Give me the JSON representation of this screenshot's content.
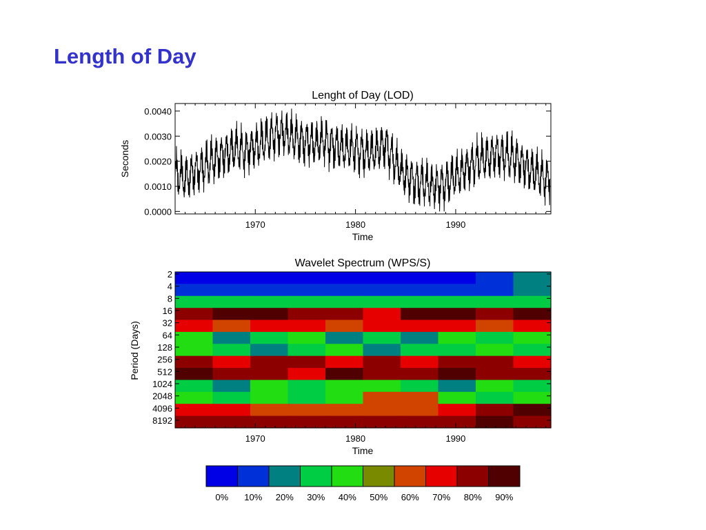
{
  "slide": {
    "title": "Length of Day"
  },
  "chart_data": [
    {
      "type": "line",
      "title": "Lenght of Day (LOD)",
      "xlabel": "Time",
      "ylabel": "Seconds",
      "xlim": [
        1962,
        1999.5
      ],
      "ylim": [
        -0.0001,
        0.0043
      ],
      "xticks": [
        1970,
        1980,
        1990
      ],
      "yticks": [
        "0.0000",
        "0.0010",
        "0.0020",
        "0.0030",
        "0.0040"
      ],
      "grid": false,
      "series": [
        {
          "x": [
            1962,
            1963,
            1964,
            1965,
            1966,
            1967,
            1968,
            1969,
            1970,
            1971,
            1972,
            1973,
            1974,
            1975,
            1976,
            1977,
            1978,
            1979,
            1980,
            1981,
            1982,
            1983,
            1984,
            1985,
            1986,
            1987,
            1988,
            1989,
            1990,
            1991,
            1992,
            1993,
            1994,
            1995,
            1996,
            1997,
            1998,
            1999
          ],
          "values": [
            0.0015,
            0.0013,
            0.0016,
            0.0018,
            0.0021,
            0.0023,
            0.0025,
            0.0024,
            0.0026,
            0.0028,
            0.0031,
            0.0031,
            0.0029,
            0.0028,
            0.0027,
            0.0028,
            0.0026,
            0.0025,
            0.0025,
            0.0023,
            0.0024,
            0.0027,
            0.0019,
            0.0014,
            0.0012,
            0.0011,
            0.001,
            0.0011,
            0.0014,
            0.0017,
            0.002,
            0.0021,
            0.0023,
            0.0022,
            0.0021,
            0.0018,
            0.0015,
            0.0013
          ]
        }
      ]
    },
    {
      "type": "heatmap",
      "title": "Wavelet Spectrum (WPS/S)",
      "xlabel": "Time",
      "ylabel": "Period (Days)",
      "xlim": [
        1962,
        1999.5
      ],
      "xticks": [
        1970,
        1980,
        1990
      ],
      "y_scale": "log2",
      "periods": [
        "2",
        "4",
        "8",
        "16",
        "32",
        "64",
        "128",
        "256",
        "512",
        "1024",
        "2048",
        "4096",
        "8192"
      ],
      "years": [
        1962,
        1966,
        1970,
        1974,
        1978,
        1982,
        1986,
        1990,
        1994,
        1998
      ],
      "values": [
        [
          0,
          0,
          0,
          0,
          0,
          0,
          0,
          0,
          10,
          20
        ],
        [
          10,
          10,
          10,
          10,
          10,
          10,
          10,
          10,
          10,
          20
        ],
        [
          30,
          30,
          30,
          30,
          30,
          30,
          30,
          30,
          30,
          30
        ],
        [
          80,
          90,
          90,
          80,
          80,
          70,
          90,
          90,
          80,
          90
        ],
        [
          70,
          60,
          70,
          70,
          60,
          70,
          70,
          70,
          60,
          70
        ],
        [
          40,
          20,
          30,
          40,
          20,
          30,
          20,
          40,
          30,
          40
        ],
        [
          40,
          30,
          20,
          30,
          40,
          20,
          30,
          30,
          40,
          30
        ],
        [
          80,
          70,
          80,
          80,
          70,
          80,
          70,
          80,
          80,
          70
        ],
        [
          90,
          80,
          80,
          70,
          90,
          80,
          80,
          90,
          80,
          80
        ],
        [
          30,
          20,
          40,
          30,
          40,
          40,
          30,
          20,
          40,
          30
        ],
        [
          40,
          30,
          40,
          30,
          40,
          60,
          60,
          40,
          30,
          40
        ],
        [
          70,
          70,
          60,
          60,
          60,
          60,
          60,
          70,
          80,
          90
        ],
        [
          80,
          80,
          80,
          80,
          80,
          80,
          80,
          80,
          90,
          80
        ]
      ]
    }
  ],
  "legend": {
    "labels": [
      "0%",
      "10%",
      "20%",
      "30%",
      "40%",
      "50%",
      "60%",
      "70%",
      "80%",
      "90%"
    ],
    "colors": [
      "#0000e6",
      "#0030d8",
      "#008080",
      "#00cc44",
      "#22dd11",
      "#7a8a00",
      "#d04400",
      "#e60000",
      "#8c0000",
      "#500000"
    ]
  }
}
